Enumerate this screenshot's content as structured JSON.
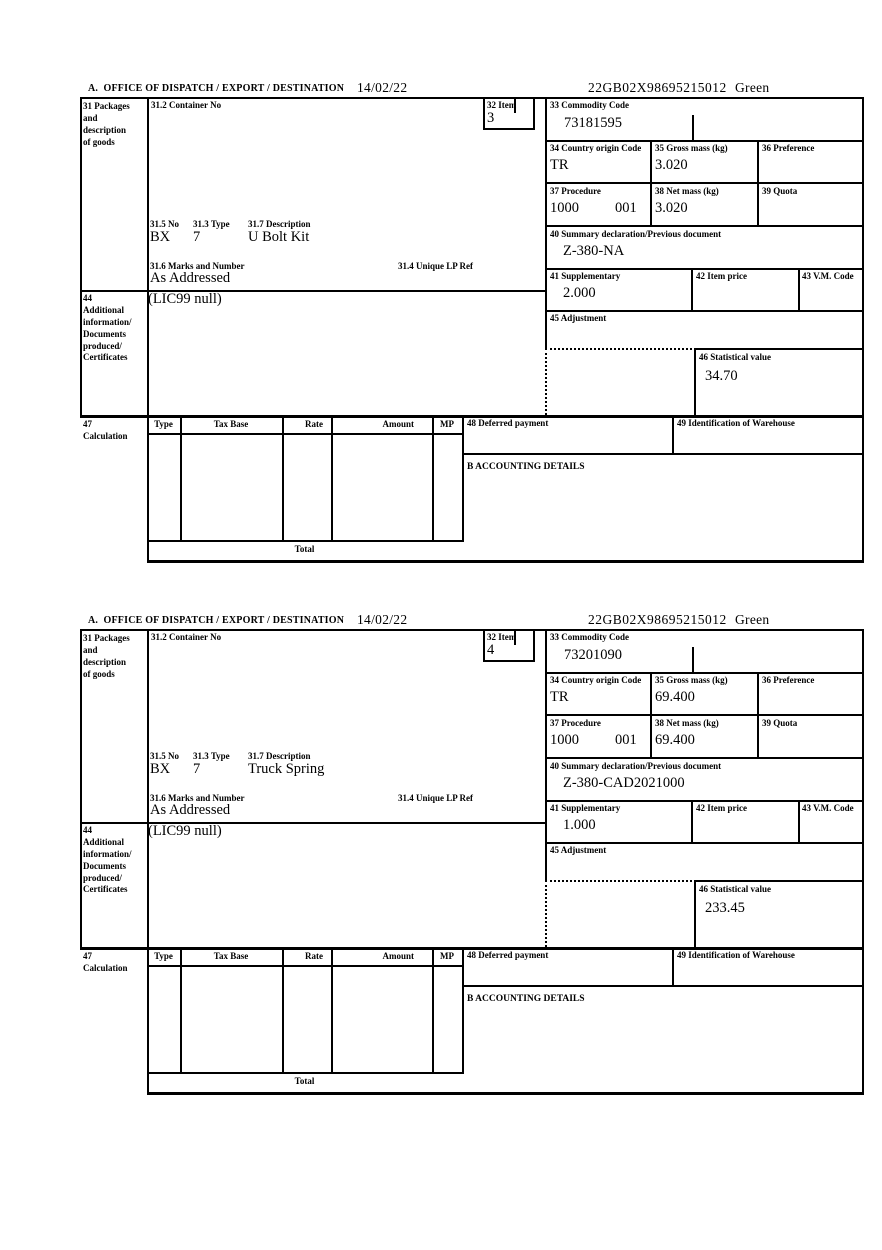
{
  "labels": {
    "office": "A.  OFFICE OF DISPATCH / EXPORT / DESTINATION",
    "box31": "31 Packages\nand\ndescription\nof goods",
    "box31_2": "31.2 Container No",
    "box32": "32 Item",
    "box31_5": "31.5 No",
    "box31_3": "31.3 Type",
    "box31_7": "31.7 Description",
    "box31_6": "31.6 Marks and Number",
    "box31_4": "31.4 Unique LP Ref",
    "box33": "33 Commodity Code",
    "box34": "34 Country origin Code",
    "box35": "35 Gross mass (kg)",
    "box36": "36 Preference",
    "box37": "37 Procedure",
    "box38": "38 Net mass (kg)",
    "box39": "39 Quota",
    "box40": "40 Summary declaration/Previous document",
    "box41": "41 Supplementary",
    "box42": "42 Item price",
    "box43": "43 V.M. Code",
    "box44": "44\nAdditional\ninformation/\nDocuments\nproduced/\nCertificates",
    "box45": "45 Adjustment",
    "box46": "46 Statistical value",
    "box47": "47\nCalculation",
    "box48": "48 Deferred payment",
    "box49": "49 Identification of Warehouse",
    "accounting": "B ACCOUNTING DETAILS",
    "total": "Total",
    "columns": {
      "type": "Type",
      "tax_base": "Tax Base",
      "rate": "Rate",
      "amount": "Amount",
      "mp": "MP"
    }
  },
  "forms": [
    {
      "date": "14/02/22",
      "mrn": "22GB02X98695215012",
      "channel": "Green",
      "item": "3",
      "commodity_code": "73181595",
      "country_origin": "TR",
      "gross_mass": "3.020",
      "procedure": "1000",
      "procedure_ext": "001",
      "net_mass": "3.020",
      "previous_document": "Z-380-NA",
      "supplementary": "2.000",
      "packages_no": "BX",
      "packages_type": "7",
      "goods_description": "U Bolt Kit",
      "marks": "As Addressed",
      "additional_information": "(LIC99 null)",
      "statistical_value": "34.70"
    },
    {
      "date": "14/02/22",
      "mrn": "22GB02X98695215012",
      "channel": "Green",
      "item": "4",
      "commodity_code": "73201090",
      "country_origin": "TR",
      "gross_mass": "69.400",
      "procedure": "1000",
      "procedure_ext": "001",
      "net_mass": "69.400",
      "previous_document": "Z-380-CAD2021000",
      "supplementary": "1.000",
      "packages_no": "BX",
      "packages_type": "7",
      "goods_description": "Truck Spring",
      "marks": "As Addressed",
      "additional_information": "(LIC99 null)",
      "statistical_value": "233.45"
    }
  ]
}
